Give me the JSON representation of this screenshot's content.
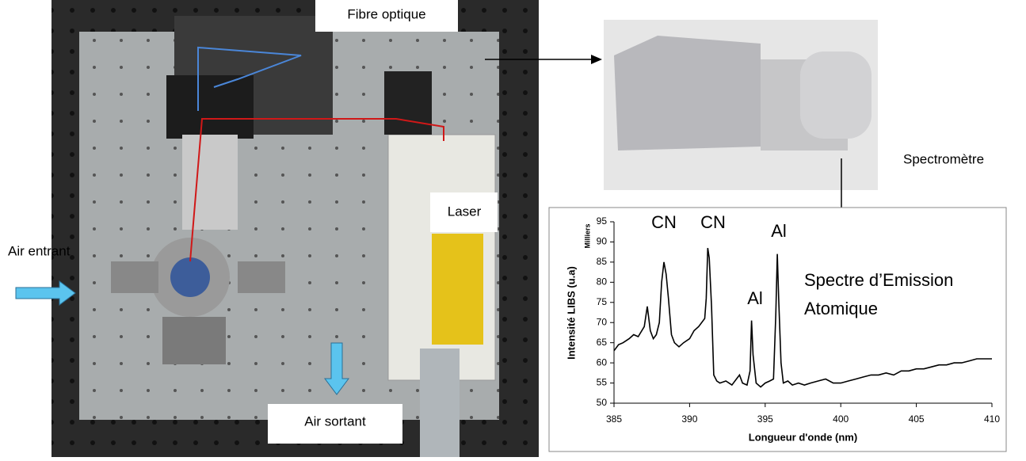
{
  "labels": {
    "fiber": "Fibre optique",
    "spectrometer": "Spectromètre",
    "laser": "Laser",
    "air_in": "Air entrant",
    "air_out": "Air sortant"
  },
  "chart_data": {
    "type": "line",
    "ylabel": "Intensité LIBS (u.a)",
    "yunit": "Milliers",
    "xlabel": "Longueur d'onde (nm)",
    "annotations": [
      "CN",
      "CN",
      "Al",
      "Al"
    ],
    "note": [
      "Spectre d’Emission",
      "Atomique"
    ],
    "x": [
      385,
      385.3,
      385.6,
      386,
      386.3,
      386.6,
      387,
      387.2,
      387.4,
      387.6,
      387.8,
      388,
      388.15,
      388.3,
      388.45,
      388.6,
      388.8,
      389,
      389.3,
      389.6,
      390,
      390.3,
      390.6,
      391,
      391.1,
      391.2,
      391.3,
      391.45,
      391.6,
      391.8,
      392,
      392.4,
      392.8,
      393.1,
      393.3,
      393.5,
      393.8,
      394,
      394.1,
      394.2,
      394.4,
      394.7,
      395,
      395.3,
      395.55,
      395.7,
      395.8,
      395.9,
      396.05,
      396.2,
      396.5,
      396.8,
      397.2,
      397.6,
      398,
      398.5,
      399,
      399.5,
      400,
      400.5,
      401,
      401.5,
      402,
      402.5,
      403,
      403.5,
      404,
      404.5,
      405,
      405.5,
      406,
      406.5,
      407,
      407.5,
      408,
      408.5,
      409,
      409.5,
      410
    ],
    "series": [
      {
        "name": "spectre",
        "color": "#000000",
        "values": [
          63,
          64.5,
          65,
          66,
          67,
          66.5,
          69,
          74,
          68,
          66,
          67,
          70,
          80,
          85,
          82,
          76,
          67,
          65,
          64,
          65,
          66,
          68,
          69,
          71,
          76,
          88.5,
          86,
          74,
          57,
          55.5,
          55,
          55.5,
          54.5,
          56,
          57,
          55,
          54.5,
          58,
          70.5,
          62,
          55,
          54,
          55,
          55.5,
          56,
          72,
          87,
          75,
          60,
          55,
          55.5,
          54.5,
          55,
          54.5,
          55,
          55.5,
          56,
          55,
          55,
          55.5,
          56,
          56.5,
          57,
          57,
          57.5,
          57,
          58,
          58,
          58.5,
          58.5,
          59,
          59.5,
          59.5,
          60,
          60,
          60.5,
          61,
          61,
          61
        ]
      }
    ],
    "xlim": [
      385,
      410
    ],
    "xticks": [
      385,
      390,
      395,
      400,
      405,
      410
    ],
    "ylim": [
      50,
      95
    ],
    "yticks": [
      50,
      55,
      60,
      65,
      70,
      75,
      80,
      85,
      90,
      95
    ]
  }
}
